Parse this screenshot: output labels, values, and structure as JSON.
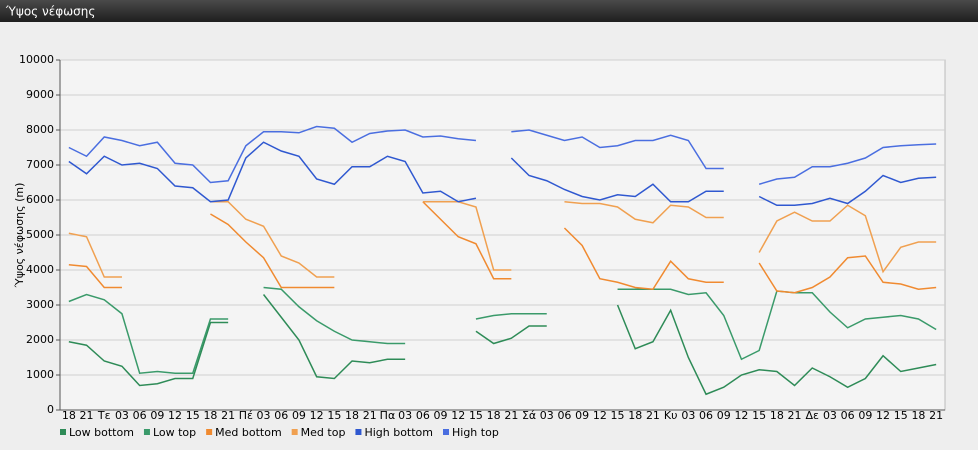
{
  "chart_data": {
    "type": "line",
    "title": "Ύψος νέφωσης",
    "y_label": "Ύψος νέφωσης (m)",
    "categories": [
      "18",
      "21",
      "Τε",
      "03",
      "06",
      "09",
      "12",
      "15",
      "18",
      "21",
      "Πέ",
      "03",
      "06",
      "09",
      "12",
      "15",
      "18",
      "21",
      "Πα",
      "03",
      "06",
      "09",
      "12",
      "15",
      "18",
      "21",
      "Σά",
      "03",
      "06",
      "09",
      "12",
      "15",
      "18",
      "21",
      "Κυ",
      "03",
      "06",
      "09",
      "12",
      "15",
      "18",
      "21",
      "Δε",
      "03",
      "06",
      "09",
      "12",
      "15",
      "18",
      "21"
    ],
    "ylim": [
      0,
      10000
    ],
    "yticks": [
      0,
      1000,
      2000,
      3000,
      4000,
      5000,
      6000,
      7000,
      8000,
      9000,
      10000
    ],
    "grid": true,
    "legend": "bottom-left",
    "series": [
      {
        "name": "Low bottom",
        "color": "#2e8b57",
        "values": [
          1950,
          1850,
          1400,
          1250,
          700,
          750,
          900,
          900,
          2500,
          2500,
          null,
          3300,
          2650,
          2000,
          950,
          900,
          1400,
          1350,
          1450,
          1450,
          null,
          null,
          null,
          2250,
          1900,
          2050,
          2400,
          2400,
          null,
          null,
          null,
          3000,
          1750,
          1950,
          2850,
          1500,
          450,
          650,
          1000,
          1150,
          1100,
          700,
          1200,
          950,
          650,
          900,
          1550,
          1100,
          1200,
          1300
        ]
      },
      {
        "name": "Low top",
        "color": "#3a9a6a",
        "values": [
          3100,
          3300,
          3150,
          2750,
          1050,
          1100,
          1050,
          1050,
          2600,
          2600,
          null,
          3500,
          3450,
          2950,
          2550,
          2250,
          2000,
          1950,
          1900,
          1900,
          null,
          null,
          null,
          2600,
          2700,
          2750,
          2750,
          2750,
          null,
          null,
          null,
          3450,
          3450,
          3450,
          3450,
          3300,
          3350,
          2700,
          1450,
          1700,
          3400,
          3350,
          3350,
          2800,
          2350,
          2600,
          2650,
          2700,
          2600,
          2300
        ]
      },
      {
        "name": "Med bottom",
        "color": "#f08a30",
        "values": [
          4150,
          4100,
          3500,
          3500,
          null,
          null,
          null,
          null,
          5600,
          5300,
          4800,
          4350,
          3500,
          3500,
          3500,
          3500,
          null,
          null,
          null,
          null,
          5950,
          5450,
          4950,
          4750,
          3750,
          3750,
          null,
          null,
          5200,
          4700,
          3750,
          3650,
          3500,
          3450,
          4250,
          3750,
          3650,
          3650,
          null,
          4200,
          3400,
          3350,
          3500,
          3800,
          4350,
          4400,
          3650,
          3600,
          3450,
          3500
        ]
      },
      {
        "name": "Med top",
        "color": "#f0a050",
        "values": [
          5050,
          4950,
          3800,
          3800,
          null,
          null,
          null,
          null,
          5950,
          5950,
          5450,
          5250,
          4400,
          4200,
          3800,
          3800,
          null,
          null,
          null,
          null,
          5950,
          5950,
          5950,
          5800,
          4000,
          4000,
          null,
          null,
          5950,
          5900,
          5900,
          5800,
          5450,
          5350,
          5850,
          5800,
          5500,
          5500,
          null,
          4500,
          5400,
          5650,
          5400,
          5400,
          5850,
          5550,
          3950,
          4650,
          4800,
          4800
        ]
      },
      {
        "name": "High bottom",
        "color": "#2f58d0",
        "values": [
          7100,
          6750,
          7250,
          7000,
          7050,
          6900,
          6400,
          6350,
          5950,
          6000,
          7200,
          7650,
          7400,
          7250,
          6600,
          6450,
          6950,
          6950,
          7250,
          7100,
          6200,
          6250,
          5950,
          6050,
          null,
          7200,
          6700,
          6550,
          6300,
          6100,
          6000,
          6150,
          6100,
          6450,
          5950,
          5950,
          6250,
          6250,
          null,
          6100,
          5850,
          5850,
          5900,
          6050,
          5900,
          6250,
          6700,
          6500,
          6620,
          6650
        ]
      },
      {
        "name": "High top",
        "color": "#4a6ee0",
        "values": [
          7500,
          7250,
          7800,
          7700,
          7550,
          7650,
          7050,
          7000,
          6500,
          6550,
          7550,
          7950,
          7950,
          7920,
          8100,
          8050,
          7650,
          7900,
          7970,
          8000,
          7800,
          7830,
          7750,
          7700,
          null,
          7950,
          8000,
          7850,
          7700,
          7800,
          7500,
          7550,
          7700,
          7700,
          7850,
          7700,
          6900,
          6900,
          null,
          6450,
          6600,
          6650,
          6950,
          6950,
          7050,
          7200,
          7500,
          7550,
          7580,
          7600
        ]
      }
    ]
  }
}
